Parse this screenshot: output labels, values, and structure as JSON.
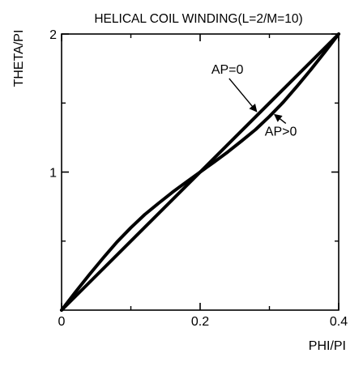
{
  "chart_data": {
    "type": "line",
    "title": "HELICAL COIL WINDING(L=2/M=10)",
    "xlabel": "PHI/PI",
    "ylabel": "THETA/PI",
    "xlim": [
      0,
      0.4
    ],
    "ylim": [
      0,
      2
    ],
    "x_ticks": [
      {
        "value": 0,
        "label": "0"
      },
      {
        "value": 0.2,
        "label": "0.2"
      },
      {
        "value": 0.4,
        "label": "0.4"
      }
    ],
    "y_ticks": [
      {
        "value": 1,
        "label": "1"
      },
      {
        "value": 2,
        "label": "2"
      }
    ],
    "y_minor_ticks": [
      0.5,
      1.5
    ],
    "x_minor_ticks": [
      0.1,
      0.3
    ],
    "grid": false,
    "series": [
      {
        "name": "AP=0",
        "x": [
          0,
          0.4
        ],
        "y": [
          0,
          2
        ]
      },
      {
        "name": "AP>0",
        "x": [
          0,
          0.02,
          0.04,
          0.06,
          0.08,
          0.1,
          0.12,
          0.14,
          0.16,
          0.18,
          0.2,
          0.22,
          0.24,
          0.26,
          0.28,
          0.3,
          0.32,
          0.34,
          0.36,
          0.38,
          0.4
        ],
        "y": [
          0,
          0.131,
          0.257,
          0.378,
          0.494,
          0.597,
          0.692,
          0.774,
          0.854,
          0.928,
          1.0,
          1.072,
          1.146,
          1.226,
          1.308,
          1.403,
          1.506,
          1.622,
          1.743,
          1.869,
          2.0
        ]
      }
    ],
    "annotations": [
      {
        "text": "AP=0",
        "target_series": "AP=0",
        "target_x": 0.284
      },
      {
        "text": "AP>0",
        "target_series": "AP>0",
        "target_x": 0.305
      }
    ]
  }
}
